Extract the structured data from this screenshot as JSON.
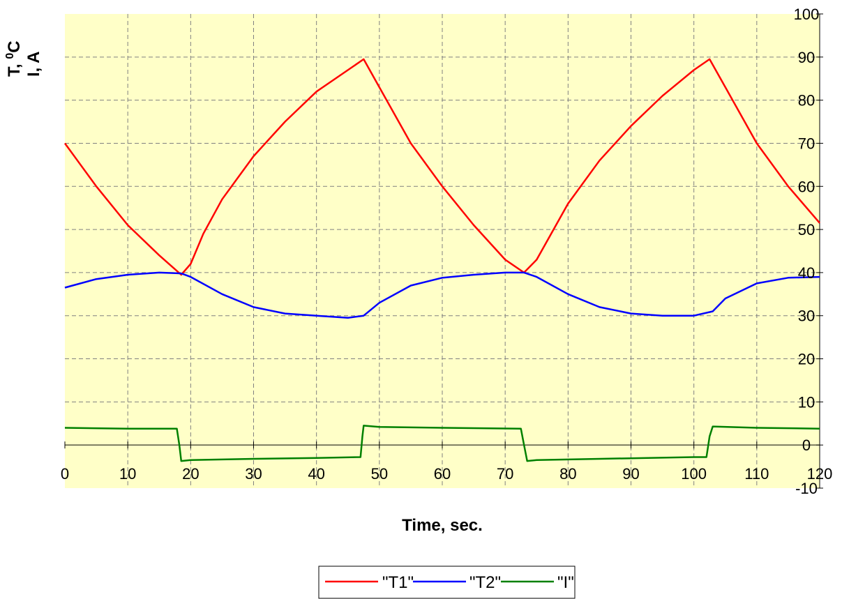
{
  "colors": {
    "plot_bg": "#FFFFC8",
    "grid": "#808080",
    "axis": "#000000"
  },
  "chart_data": {
    "type": "line",
    "xlabel": "Time, sec.",
    "ylabel_line1": "T, ",
    "ylabel_sup": "0",
    "ylabel_unit": "C",
    "ylabel_line2": "I, A",
    "xlim": [
      0,
      120
    ],
    "ylim": [
      -10,
      100
    ],
    "x_ticks": [
      "0",
      "10",
      "20",
      "30",
      "40",
      "50",
      "60",
      "70",
      "80",
      "90",
      "100",
      "110",
      "120"
    ],
    "y_ticks": [
      "100",
      "90",
      "80",
      "70",
      "60",
      "50",
      "40",
      "30",
      "20",
      "10",
      "0",
      "-10"
    ],
    "grid": true,
    "legend_position": "bottom-center",
    "series": [
      {
        "name": "\"T1\"",
        "color": "#FF0000",
        "x": [
          0,
          2,
          5,
          10,
          15,
          18.5,
          20,
          22,
          25,
          30,
          35,
          40,
          45,
          47.5,
          50,
          55,
          60,
          65,
          70,
          73,
          75,
          80,
          85,
          90,
          95,
          100,
          102.5,
          105,
          110,
          115,
          120
        ],
        "y": [
          70,
          66,
          60,
          51,
          44,
          39.5,
          42,
          49,
          57,
          67,
          75,
          82,
          87,
          89.5,
          83,
          70,
          60,
          51,
          43,
          40,
          43,
          56,
          66,
          74,
          81,
          87,
          89.5,
          83,
          70,
          60,
          51.5
        ]
      },
      {
        "name": "\"T2\"",
        "color": "#0000FF",
        "x": [
          0,
          5,
          10,
          15,
          18.5,
          20,
          25,
          30,
          35,
          40,
          45,
          47.5,
          50,
          55,
          60,
          65,
          70,
          73,
          75,
          80,
          85,
          90,
          95,
          100,
          103,
          105,
          110,
          115,
          120
        ],
        "y": [
          36.5,
          38.5,
          39.5,
          40,
          39.8,
          39,
          35,
          32,
          30.5,
          30,
          29.5,
          30,
          33,
          37,
          38.8,
          39.5,
          40,
          40,
          39,
          35,
          32,
          30.5,
          30,
          30,
          31,
          34,
          37.5,
          38.8,
          39
        ]
      },
      {
        "name": "\"I\"",
        "color": "#008000",
        "x": [
          0,
          10,
          17.8,
          18.2,
          18.5,
          20,
          30,
          40,
          47,
          47.3,
          47.5,
          50,
          60,
          72.5,
          73,
          73.5,
          75,
          85,
          100,
          102,
          102.5,
          103,
          110,
          120
        ],
        "y": [
          4,
          3.8,
          3.8,
          0,
          -3.7,
          -3.5,
          -3.2,
          -3,
          -2.8,
          2,
          4.5,
          4.2,
          4,
          3.8,
          0,
          -3.7,
          -3.5,
          -3.2,
          -2.8,
          -2.8,
          2,
          4.3,
          4,
          3.8
        ]
      }
    ]
  }
}
